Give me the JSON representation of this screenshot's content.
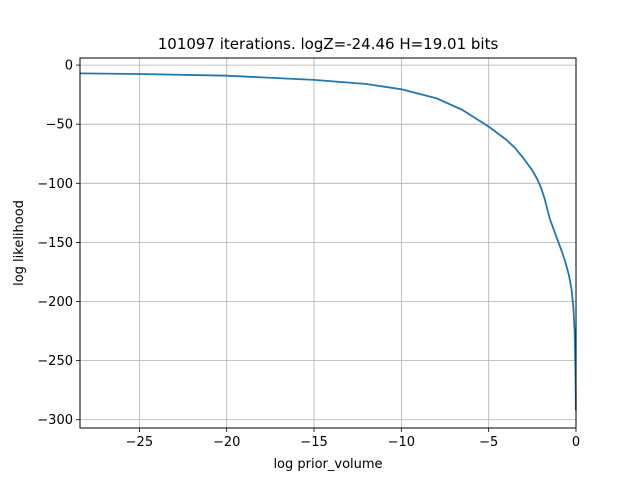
{
  "chart_data": {
    "type": "line",
    "title": "101097 iterations. logZ=-24.46 H=19.01 bits",
    "xlabel": "log prior_volume",
    "ylabel": "log likelihood",
    "xlim": [
      -28.4,
      0.0
    ],
    "ylim": [
      -307,
      6
    ],
    "x_ticks": [
      -25,
      -20,
      -15,
      -10,
      -5,
      0
    ],
    "x_tick_labels": [
      "−25",
      "−20",
      "−15",
      "−10",
      "−5",
      "0"
    ],
    "y_ticks": [
      0,
      -50,
      -100,
      -150,
      -200,
      -250,
      -300
    ],
    "y_tick_labels": [
      "0",
      "−50",
      "−100",
      "−150",
      "−200",
      "−250",
      "−300"
    ],
    "grid": true,
    "series": [
      {
        "color": "#1f77b4",
        "x": [
          -28.4,
          -25,
          -20,
          -15,
          -12,
          -10,
          -8,
          -6.5,
          -5,
          -4,
          -3.5,
          -3,
          -2.5,
          -2.2,
          -2.0,
          -1.8,
          -1.5,
          -1.2,
          -1.0,
          -0.8,
          -0.6,
          -0.4,
          -0.25,
          -0.15,
          -0.08,
          -0.04,
          -0.02,
          -0.01
        ],
        "y": [
          -7,
          -7.5,
          -9,
          -12.5,
          -16,
          -20.5,
          -28,
          -38,
          -52,
          -63,
          -70,
          -79,
          -89,
          -97,
          -104,
          -113,
          -130,
          -142,
          -150,
          -158,
          -167,
          -178,
          -190,
          -205,
          -225,
          -250,
          -275,
          -292
        ]
      }
    ]
  }
}
